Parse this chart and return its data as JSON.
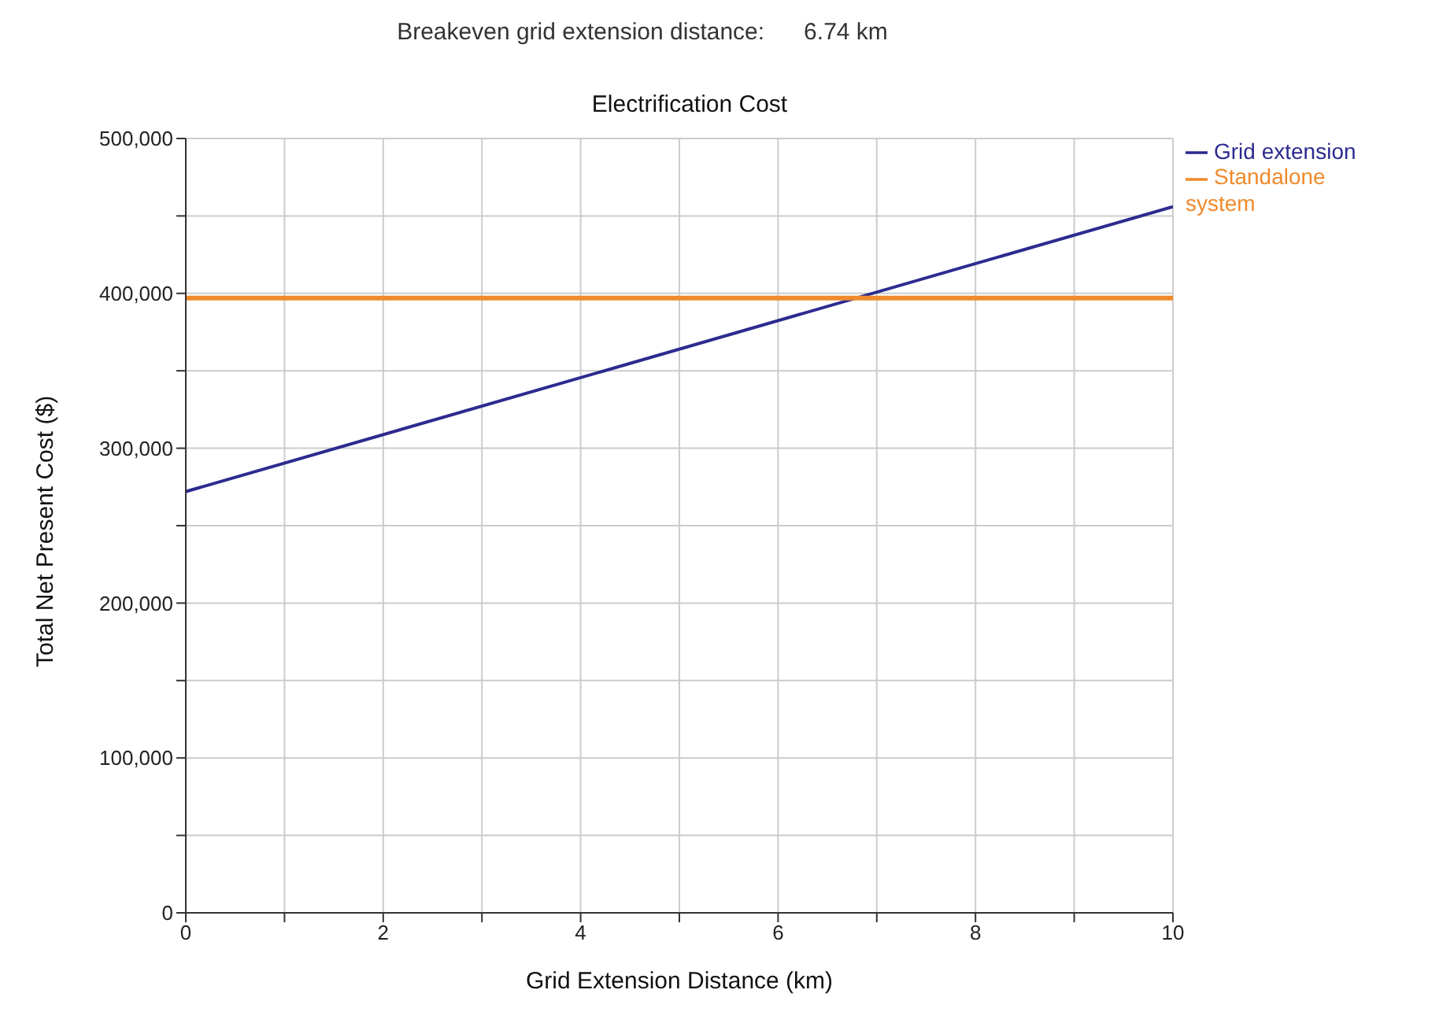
{
  "chart_data": {
    "type": "line",
    "title": "Electrification Cost",
    "xlabel": "Grid Extension Distance (km)",
    "ylabel": "Total Net Present Cost ($)",
    "annotations": [
      "Breakeven grid extension distance:      6.74 km"
    ],
    "x": [
      0,
      10
    ],
    "series": [
      {
        "name": "Grid extension",
        "color": "#2b2b8f",
        "values": [
          272000,
          456000
        ]
      },
      {
        "name": "Standalone system",
        "color": "#f08a2c",
        "values": [
          397000,
          397000
        ]
      }
    ],
    "xlim": [
      0,
      10
    ],
    "xticks": [
      0,
      {
        "value": 1,
        "label": null
      },
      2,
      {
        "value": 3,
        "label": null
      },
      4,
      {
        "value": 5,
        "label": null
      },
      6,
      {
        "value": 7,
        "label": null
      },
      8,
      {
        "value": 9,
        "label": null
      },
      10
    ],
    "ylim": [
      0,
      500000
    ],
    "yticks": [
      {
        "value": 0,
        "label": "0"
      },
      {
        "value": 50000,
        "label": null
      },
      {
        "value": 100000,
        "label": "100,000"
      },
      {
        "value": 150000,
        "label": null
      },
      {
        "value": 200000,
        "label": "200,000"
      },
      {
        "value": 250000,
        "label": null
      },
      {
        "value": 300000,
        "label": "300,000"
      },
      {
        "value": 350000,
        "label": null
      },
      {
        "value": 400000,
        "label": "400,000"
      },
      {
        "value": 450000,
        "label": null
      },
      {
        "value": 500000,
        "label": "500,000"
      }
    ],
    "grid": true,
    "legend": "right",
    "marker": "none",
    "line_style": "solid"
  }
}
